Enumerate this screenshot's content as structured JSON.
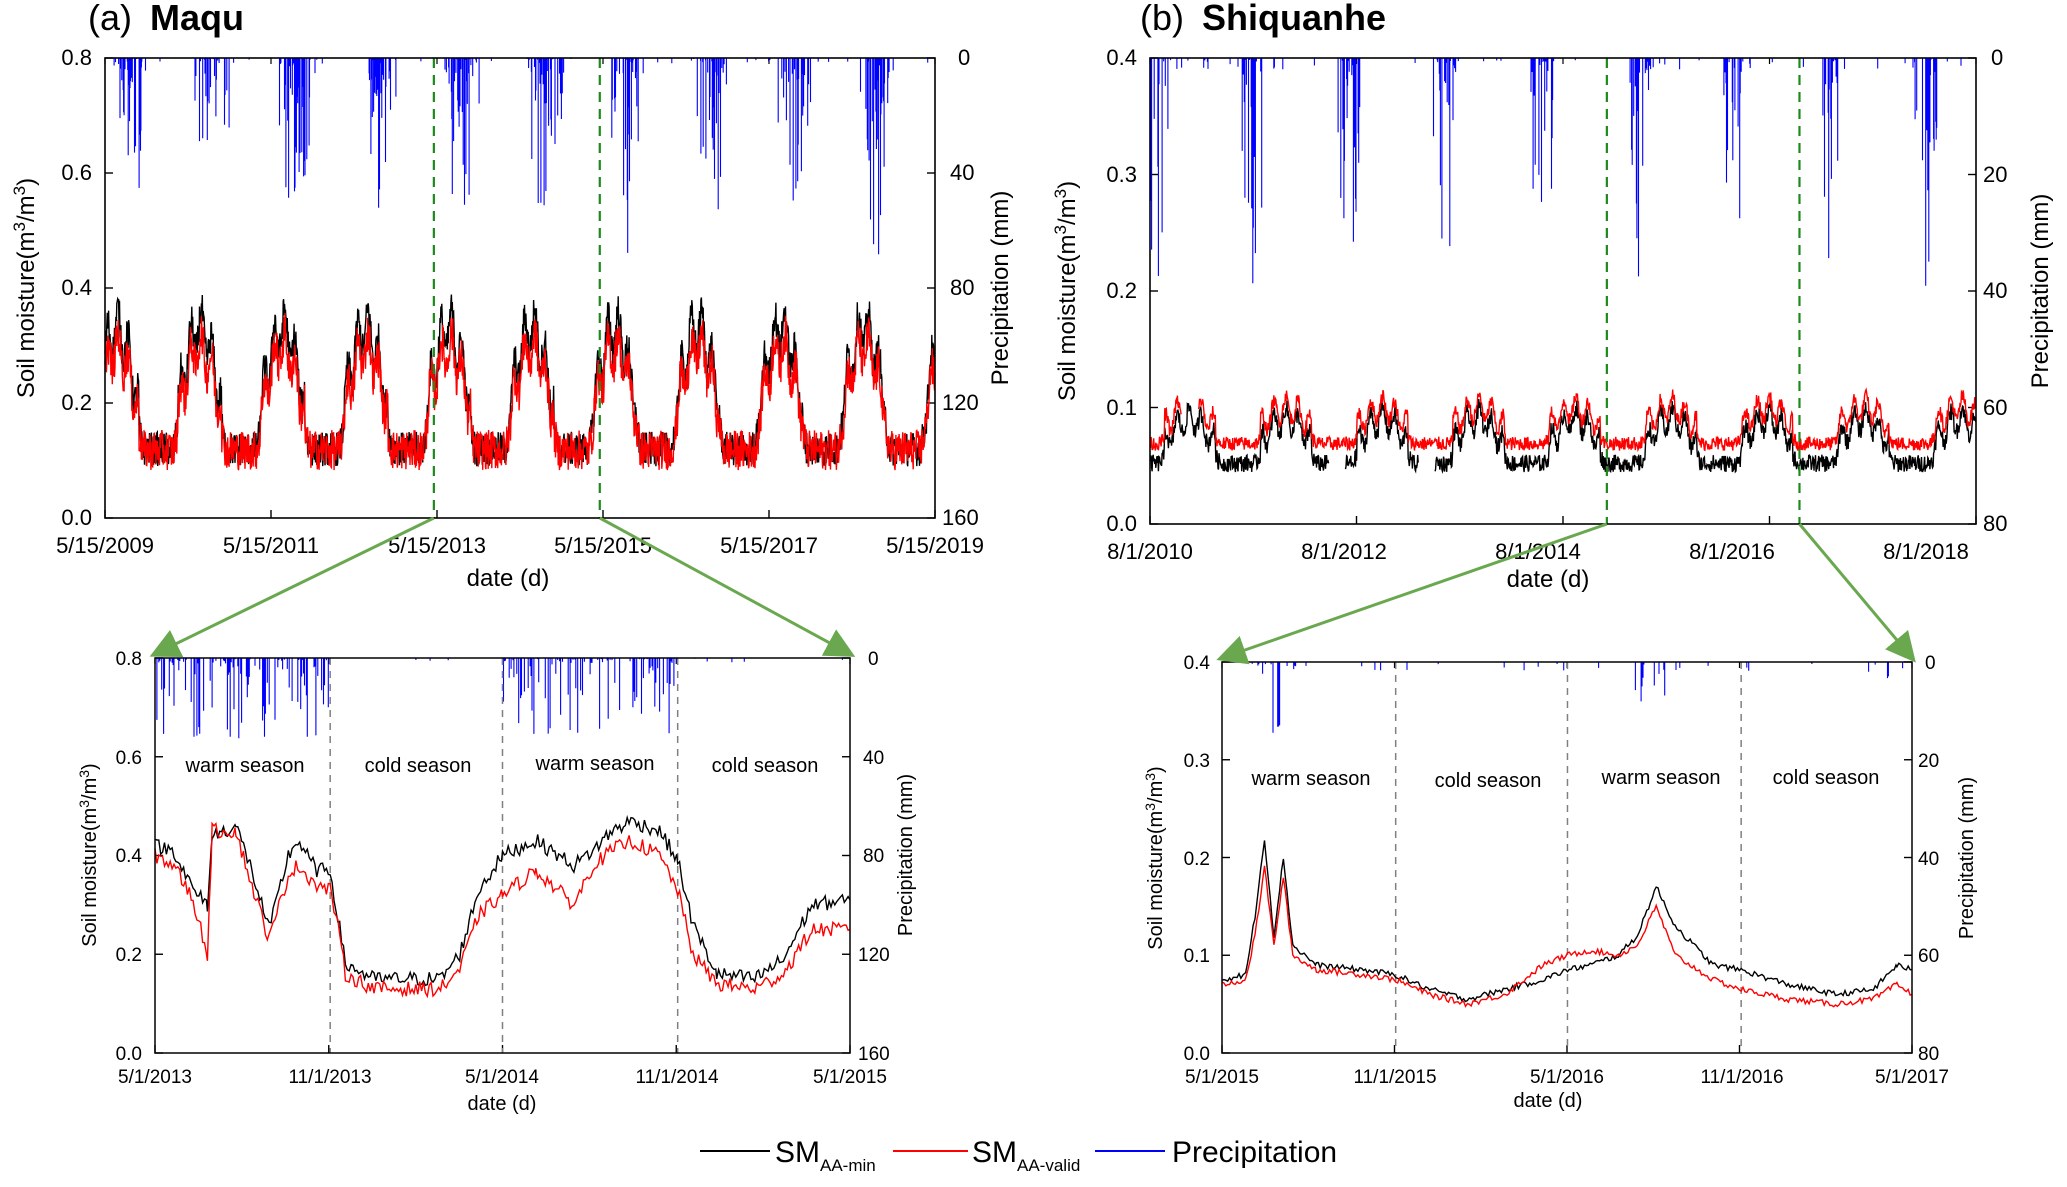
{
  "colors": {
    "sm_min": "#000000",
    "sm_valid": "#ff0000",
    "precip": "#0000ff",
    "zoom_line": "#1e8a1e",
    "zoom_arrow": "#6aa84f",
    "season_line": "#808080"
  },
  "chart_data": [
    {
      "id": "a",
      "type": "line",
      "letter": "(a)",
      "title": "Maqu",
      "xlabel": "date (d)",
      "ylabel_prefix": "Soil moisture(m",
      "ylabel_mid": "/m",
      "ylabel_exp": "3",
      "ylabel_suffix": ")",
      "y2label": "Precipitation (mm)",
      "xlim": [
        0,
        3652
      ],
      "ylim": [
        0,
        0.8
      ],
      "y2lim": [
        160,
        0
      ],
      "xticks": [
        "5/15/2009",
        "5/15/2011",
        "5/15/2013",
        "5/15/2015",
        "5/15/2017",
        "5/15/2019"
      ],
      "yticks": [
        "0.0",
        "0.2",
        "0.4",
        "0.6",
        "0.8"
      ],
      "y2ticks": [
        "160",
        "120",
        "80",
        "40",
        "0"
      ],
      "zoom_window_days": [
        1447,
        2177
      ],
      "series": [
        {
          "name": "SM_AA-min",
          "style": "sm_min",
          "base": 0.17,
          "amp": 0.125,
          "warm": 0.07,
          "offset": 0.0
        },
        {
          "name": "SM_AA-valid",
          "style": "sm_valid",
          "base": 0.165,
          "amp": 0.105,
          "warm": 0.06,
          "offset": -0.005
        },
        {
          "name": "Precipitation",
          "style": "precip",
          "peak_mm": 60
        }
      ]
    },
    {
      "id": "b",
      "type": "line",
      "letter": "(b)",
      "title": "Shiquanhe",
      "xlabel": "date (d)",
      "ylabel_prefix": "Soil moisture(m",
      "ylabel_mid": "/m",
      "ylabel_exp": "3",
      "ylabel_suffix": ")",
      "y2label": "Precipitation (mm)",
      "xlim": [
        0,
        3135
      ],
      "ylim": [
        0,
        0.4
      ],
      "y2lim": [
        80,
        0
      ],
      "xticks": [
        "8/1/2010",
        "8/1/2012",
        "8/1/2014",
        "8/1/2016",
        "8/1/2018"
      ],
      "yticks": [
        "0.0",
        "0.1",
        "0.2",
        "0.3",
        "0.4"
      ],
      "y2ticks": [
        "80",
        "60",
        "40",
        "20",
        "0"
      ],
      "zoom_window_days": [
        1734,
        2465
      ],
      "series": [
        {
          "name": "SM_AA-min",
          "style": "sm_min",
          "base": 0.06,
          "amp": 0.02,
          "warm": 0.02,
          "offset": 0.0
        },
        {
          "name": "SM_AA-valid",
          "style": "sm_valid",
          "base": 0.075,
          "amp": 0.015,
          "warm": 0.02,
          "offset": 0.0
        },
        {
          "name": "Precipitation",
          "style": "precip",
          "peak_mm": 40
        }
      ]
    },
    {
      "id": "a-zoom",
      "type": "line",
      "title": "",
      "xlabel": "date (d)",
      "ylabel_prefix": "Soil moisture(m",
      "ylabel_mid": "/m",
      "ylabel_exp": "3",
      "ylabel_suffix": ")",
      "y2label": "Precipitation (mm)",
      "xlim": [
        0,
        730
      ],
      "ylim": [
        0,
        0.8
      ],
      "y2lim": [
        160,
        0
      ],
      "xticks": [
        "5/1/2013",
        "11/1/2013",
        "5/1/2014",
        "11/1/2014",
        "5/1/2015"
      ],
      "yticks": [
        "0.0",
        "0.2",
        "0.4",
        "0.6",
        "0.8"
      ],
      "y2ticks": [
        "160",
        "120",
        "80",
        "40",
        "0"
      ],
      "seasons": [
        "warm season",
        "cold season",
        "warm season",
        "cold season"
      ],
      "season_boundaries_days": [
        184,
        365,
        549
      ],
      "series": [
        {
          "name": "SM_AA-min",
          "style": "sm_min"
        },
        {
          "name": "SM_AA-valid",
          "style": "sm_valid"
        },
        {
          "name": "Precipitation",
          "style": "precip",
          "peak_mm": 35
        }
      ],
      "sm_min_points": [
        [
          0,
          0.42
        ],
        [
          20,
          0.41
        ],
        [
          40,
          0.33
        ],
        [
          55,
          0.3
        ],
        [
          60,
          0.44
        ],
        [
          85,
          0.46
        ],
        [
          100,
          0.38
        ],
        [
          120,
          0.25
        ],
        [
          140,
          0.4
        ],
        [
          150,
          0.43
        ],
        [
          170,
          0.37
        ],
        [
          184,
          0.37
        ],
        [
          190,
          0.3
        ],
        [
          200,
          0.18
        ],
        [
          230,
          0.15
        ],
        [
          270,
          0.15
        ],
        [
          300,
          0.15
        ],
        [
          320,
          0.2
        ],
        [
          340,
          0.33
        ],
        [
          365,
          0.4
        ],
        [
          400,
          0.43
        ],
        [
          440,
          0.38
        ],
        [
          460,
          0.41
        ],
        [
          480,
          0.45
        ],
        [
          500,
          0.47
        ],
        [
          530,
          0.45
        ],
        [
          549,
          0.39
        ],
        [
          565,
          0.26
        ],
        [
          590,
          0.16
        ],
        [
          630,
          0.15
        ],
        [
          660,
          0.19
        ],
        [
          690,
          0.3
        ],
        [
          730,
          0.31
        ]
      ],
      "sm_valid_points": [
        [
          0,
          0.4
        ],
        [
          20,
          0.38
        ],
        [
          40,
          0.31
        ],
        [
          55,
          0.2
        ],
        [
          60,
          0.45
        ],
        [
          85,
          0.45
        ],
        [
          100,
          0.35
        ],
        [
          120,
          0.23
        ],
        [
          140,
          0.36
        ],
        [
          150,
          0.38
        ],
        [
          170,
          0.34
        ],
        [
          184,
          0.33
        ],
        [
          190,
          0.28
        ],
        [
          200,
          0.16
        ],
        [
          230,
          0.13
        ],
        [
          270,
          0.13
        ],
        [
          300,
          0.13
        ],
        [
          320,
          0.17
        ],
        [
          340,
          0.28
        ],
        [
          365,
          0.32
        ],
        [
          400,
          0.37
        ],
        [
          440,
          0.3
        ],
        [
          460,
          0.38
        ],
        [
          480,
          0.41
        ],
        [
          500,
          0.43
        ],
        [
          530,
          0.4
        ],
        [
          549,
          0.33
        ],
        [
          565,
          0.2
        ],
        [
          590,
          0.14
        ],
        [
          630,
          0.13
        ],
        [
          660,
          0.16
        ],
        [
          690,
          0.25
        ],
        [
          730,
          0.25
        ]
      ]
    },
    {
      "id": "b-zoom",
      "type": "line",
      "title": "",
      "xlabel": "date (d)",
      "ylabel_prefix": "Soil moisture(m",
      "ylabel_mid": "/m",
      "ylabel_exp": "3",
      "ylabel_suffix": ")",
      "y2label": "Precipitation (mm)",
      "xlim": [
        0,
        731
      ],
      "ylim": [
        0,
        0.4
      ],
      "y2lim": [
        80,
        0
      ],
      "xticks": [
        "5/1/2015",
        "11/1/2015",
        "5/1/2016",
        "11/1/2016",
        "5/1/2017"
      ],
      "yticks": [
        "0.0",
        "0.1",
        "0.2",
        "0.3",
        "0.4"
      ],
      "y2ticks": [
        "80",
        "60",
        "40",
        "20",
        "0"
      ],
      "seasons": [
        "warm season",
        "cold season",
        "warm season",
        "cold season"
      ],
      "season_boundaries_days": [
        184,
        366,
        550
      ],
      "series": [
        {
          "name": "SM_AA-min",
          "style": "sm_min"
        },
        {
          "name": "SM_AA-valid",
          "style": "sm_valid"
        },
        {
          "name": "Precipitation",
          "style": "precip",
          "peak_mm": 15
        }
      ],
      "sm_min_points": [
        [
          0,
          0.075
        ],
        [
          25,
          0.08
        ],
        [
          35,
          0.14
        ],
        [
          45,
          0.22
        ],
        [
          55,
          0.12
        ],
        [
          65,
          0.2
        ],
        [
          75,
          0.11
        ],
        [
          100,
          0.09
        ],
        [
          150,
          0.085
        ],
        [
          184,
          0.08
        ],
        [
          220,
          0.065
        ],
        [
          260,
          0.055
        ],
        [
          300,
          0.065
        ],
        [
          340,
          0.075
        ],
        [
          366,
          0.085
        ],
        [
          390,
          0.09
        ],
        [
          420,
          0.1
        ],
        [
          440,
          0.12
        ],
        [
          460,
          0.17
        ],
        [
          480,
          0.13
        ],
        [
          520,
          0.09
        ],
        [
          550,
          0.085
        ],
        [
          600,
          0.07
        ],
        [
          650,
          0.06
        ],
        [
          690,
          0.065
        ],
        [
          715,
          0.09
        ],
        [
          731,
          0.085
        ]
      ],
      "sm_valid_points": [
        [
          0,
          0.07
        ],
        [
          25,
          0.075
        ],
        [
          35,
          0.12
        ],
        [
          45,
          0.19
        ],
        [
          55,
          0.11
        ],
        [
          65,
          0.18
        ],
        [
          75,
          0.1
        ],
        [
          100,
          0.085
        ],
        [
          150,
          0.08
        ],
        [
          184,
          0.075
        ],
        [
          220,
          0.06
        ],
        [
          260,
          0.05
        ],
        [
          300,
          0.06
        ],
        [
          340,
          0.09
        ],
        [
          366,
          0.1
        ],
        [
          390,
          0.105
        ],
        [
          420,
          0.1
        ],
        [
          440,
          0.11
        ],
        [
          460,
          0.15
        ],
        [
          480,
          0.1
        ],
        [
          520,
          0.075
        ],
        [
          550,
          0.065
        ],
        [
          600,
          0.055
        ],
        [
          650,
          0.05
        ],
        [
          690,
          0.055
        ],
        [
          715,
          0.07
        ],
        [
          731,
          0.06
        ]
      ]
    }
  ],
  "legend": {
    "items": [
      {
        "main": "SM",
        "sub": "AA-min",
        "style": "sm_min"
      },
      {
        "main": "SM",
        "sub": "AA-valid",
        "style": "sm_valid"
      },
      {
        "main": "Precipitation",
        "sub": "",
        "style": "precip"
      }
    ]
  }
}
